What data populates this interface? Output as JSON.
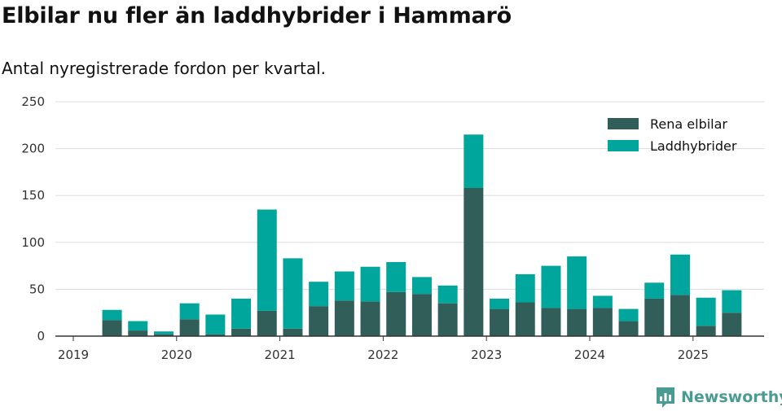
{
  "header": {
    "title": "Elbilar nu fler än laddhybrider i Hammarö",
    "subtitle": "Antal nyregistrerade fordon per kvartal."
  },
  "brand": {
    "name": "Newsworthy",
    "icon": "newsworthy-logo-icon"
  },
  "colors": {
    "series_0": "#325e5a",
    "series_1": "#00a59b"
  },
  "chart_data": {
    "type": "bar",
    "stacked": true,
    "categories": [
      "2019Q2",
      "2019Q3",
      "2019Q4",
      "2020Q1",
      "2020Q2",
      "2020Q3",
      "2020Q4",
      "2021Q1",
      "2021Q2",
      "2021Q3",
      "2021Q4",
      "2022Q1",
      "2022Q2",
      "2022Q3",
      "2022Q4",
      "2023Q1",
      "2023Q2",
      "2023Q3",
      "2023Q4",
      "2024Q1",
      "2024Q2",
      "2024Q3",
      "2024Q4",
      "2025Q1",
      "2025Q2"
    ],
    "series": [
      {
        "name": "Rena elbilar",
        "values": [
          17,
          6,
          2,
          18,
          2,
          8,
          27,
          8,
          32,
          38,
          37,
          47,
          45,
          35,
          158,
          29,
          36,
          30,
          29,
          30,
          16,
          40,
          44,
          11,
          25
        ]
      },
      {
        "name": "Laddhybrider",
        "values": [
          11,
          10,
          3,
          17,
          21,
          32,
          108,
          75,
          26,
          31,
          37,
          32,
          18,
          19,
          57,
          11,
          30,
          45,
          56,
          13,
          13,
          17,
          43,
          30,
          24
        ]
      }
    ],
    "x_tick_labels": [
      "2019",
      "2020",
      "2021",
      "2022",
      "2023",
      "2024",
      "2025"
    ],
    "y_tick_labels": [
      "0",
      "50",
      "100",
      "150",
      "200",
      "250"
    ],
    "ylim": [
      0,
      250
    ],
    "grid": true,
    "legend_position": "top-right"
  }
}
